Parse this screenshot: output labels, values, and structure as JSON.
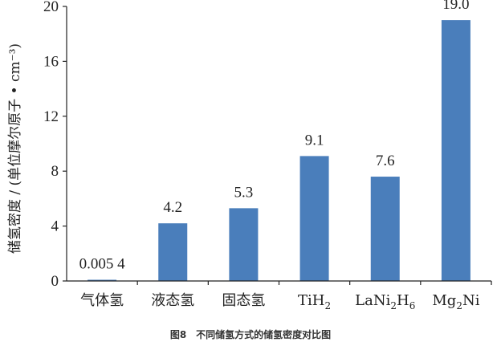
{
  "caption": "图8　不同储氢方式的储氢密度对比图",
  "chart_data": {
    "type": "bar",
    "categories": [
      {
        "text": "气体氢",
        "sub": []
      },
      {
        "text": "液态氢",
        "sub": []
      },
      {
        "text": "固态氢",
        "sub": []
      },
      {
        "text": "TiH",
        "sub": [
          "2"
        ]
      },
      {
        "text": "LaNi",
        "sub": [
          "2",
          "6"
        ],
        "mid": "H"
      },
      {
        "text": "Mg",
        "sub": [
          "2"
        ],
        "after": "Ni"
      }
    ],
    "values": [
      0.0054,
      4.2,
      5.3,
      9.1,
      7.6,
      19.0
    ],
    "value_labels": [
      "0.005 4",
      "4.2",
      "5.3",
      "9.1",
      "7.6",
      "19.0"
    ],
    "ylabel": "储氢密度 / (单位摩尔原子 • cm⁻³)",
    "ylim": [
      0,
      20
    ],
    "yticks": [
      "0",
      "4",
      "8",
      "12",
      "16",
      "20"
    ],
    "bar_color": "#4a7ebb",
    "axis_color": "#222222",
    "grid": false
  }
}
